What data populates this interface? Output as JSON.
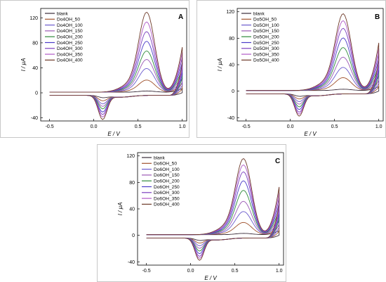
{
  "chart_data": [
    {
      "type": "line",
      "panel": "A",
      "xlabel": "E / V",
      "ylabel": "I / µA",
      "xlim": [
        -0.6,
        1.05
      ],
      "ylim": [
        -45,
        135
      ],
      "xticks": [
        -0.5,
        0.0,
        0.5,
        1.0
      ],
      "xtick_labels": [
        "-0.5",
        "0.0",
        "0.5",
        "1.0"
      ],
      "yticks": [
        -40,
        0,
        40,
        80,
        120
      ],
      "ytick_labels": [
        "-40",
        "0",
        "40",
        "80",
        "120"
      ],
      "legend_position": "top-left",
      "series": [
        {
          "name": "blank",
          "color": "#3a2c3a",
          "peak_anodic": 3,
          "peak_cathodic": -3
        },
        {
          "name": "Do4OH_50",
          "color": "#a0522d",
          "peak_anodic": 20,
          "peak_cathodic": -8
        },
        {
          "name": "Do4OH_100",
          "color": "#6a5acd",
          "peak_anodic": 38,
          "peak_cathodic": -13
        },
        {
          "name": "Do4OH_150",
          "color": "#9b59b6",
          "peak_anodic": 52,
          "peak_cathodic": -17
        },
        {
          "name": "Do4OH_200",
          "color": "#2e8b3a",
          "peak_anodic": 65,
          "peak_cathodic": -21
        },
        {
          "name": "Do4OH_250",
          "color": "#4b3cc9",
          "peak_anodic": 80,
          "peak_cathodic": -26
        },
        {
          "name": "Do4OH_300",
          "color": "#7b3fbf",
          "peak_anodic": 95,
          "peak_cathodic": -30
        },
        {
          "name": "Do4OH_350",
          "color": "#b05ac7",
          "peak_anodic": 110,
          "peak_cathodic": -34
        },
        {
          "name": "Do4OH_400",
          "color": "#6e3a2a",
          "peak_anodic": 125,
          "peak_cathodic": -38
        }
      ]
    },
    {
      "type": "line",
      "panel": "B",
      "xlabel": "E / V",
      "ylabel": "I / µA",
      "xlim": [
        -0.6,
        1.05
      ],
      "ylim": [
        -45,
        125
      ],
      "xticks": [
        -0.5,
        0.0,
        0.5,
        1.0
      ],
      "xtick_labels": [
        "-0.5",
        "0.0",
        "0.5",
        "1.0"
      ],
      "yticks": [
        -40,
        0,
        40,
        80,
        120
      ],
      "ytick_labels": [
        "-40",
        "0",
        "40",
        "80",
        "120"
      ],
      "legend_position": "top-left",
      "series": [
        {
          "name": "blank",
          "color": "#3a2c3a",
          "peak_anodic": 3,
          "peak_cathodic": -3
        },
        {
          "name": "Do5OH_50",
          "color": "#a0522d",
          "peak_anodic": 20,
          "peak_cathodic": -7
        },
        {
          "name": "Do5OH_100",
          "color": "#6a5acd",
          "peak_anodic": 35,
          "peak_cathodic": -11
        },
        {
          "name": "Do5OH_150",
          "color": "#9b59b6",
          "peak_anodic": 50,
          "peak_cathodic": -15
        },
        {
          "name": "Do5OH_200",
          "color": "#2e8b3a",
          "peak_anodic": 64,
          "peak_cathodic": -19
        },
        {
          "name": "Do5OH_250",
          "color": "#4b3cc9",
          "peak_anodic": 78,
          "peak_cathodic": -23
        },
        {
          "name": "Do5OH_300",
          "color": "#7b3fbf",
          "peak_anodic": 92,
          "peak_cathodic": -27
        },
        {
          "name": "Do5OH_350",
          "color": "#b05ac7",
          "peak_anodic": 103,
          "peak_cathodic": -30
        },
        {
          "name": "Do5OH_400",
          "color": "#6e3a2a",
          "peak_anodic": 113,
          "peak_cathodic": -33
        }
      ]
    },
    {
      "type": "line",
      "panel": "C",
      "xlabel": "E / V",
      "ylabel": "I / µA",
      "xlim": [
        -0.6,
        1.05
      ],
      "ylim": [
        -45,
        125
      ],
      "xticks": [
        -0.5,
        0.0,
        0.5,
        1.0
      ],
      "xtick_labels": [
        "-0.5",
        "0.0",
        "0.5",
        "1.0"
      ],
      "yticks": [
        -40,
        0,
        40,
        80,
        120
      ],
      "ytick_labels": [
        "-40",
        "0",
        "40",
        "80",
        "120"
      ],
      "legend_position": "top-left",
      "series": [
        {
          "name": "blank",
          "color": "#3a2c3a",
          "peak_anodic": 3,
          "peak_cathodic": -3
        },
        {
          "name": "Do6OH_50",
          "color": "#a0522d",
          "peak_anodic": 19,
          "peak_cathodic": -7
        },
        {
          "name": "Do6OH_100",
          "color": "#6a5acd",
          "peak_anodic": 35,
          "peak_cathodic": -11
        },
        {
          "name": "Do6OH_150",
          "color": "#9b59b6",
          "peak_anodic": 50,
          "peak_cathodic": -15
        },
        {
          "name": "Do6OH_200",
          "color": "#2e8b3a",
          "peak_anodic": 66,
          "peak_cathodic": -19
        },
        {
          "name": "Do6OH_250",
          "color": "#4b3cc9",
          "peak_anodic": 80,
          "peak_cathodic": -23
        },
        {
          "name": "Do6OH_300",
          "color": "#7b3fbf",
          "peak_anodic": 93,
          "peak_cathodic": -27
        },
        {
          "name": "Do6OH_350",
          "color": "#b05ac7",
          "peak_anodic": 103,
          "peak_cathodic": -30
        },
        {
          "name": "Do6OH_400",
          "color": "#6e3a2a",
          "peak_anodic": 112,
          "peak_cathodic": -33
        }
      ]
    }
  ]
}
